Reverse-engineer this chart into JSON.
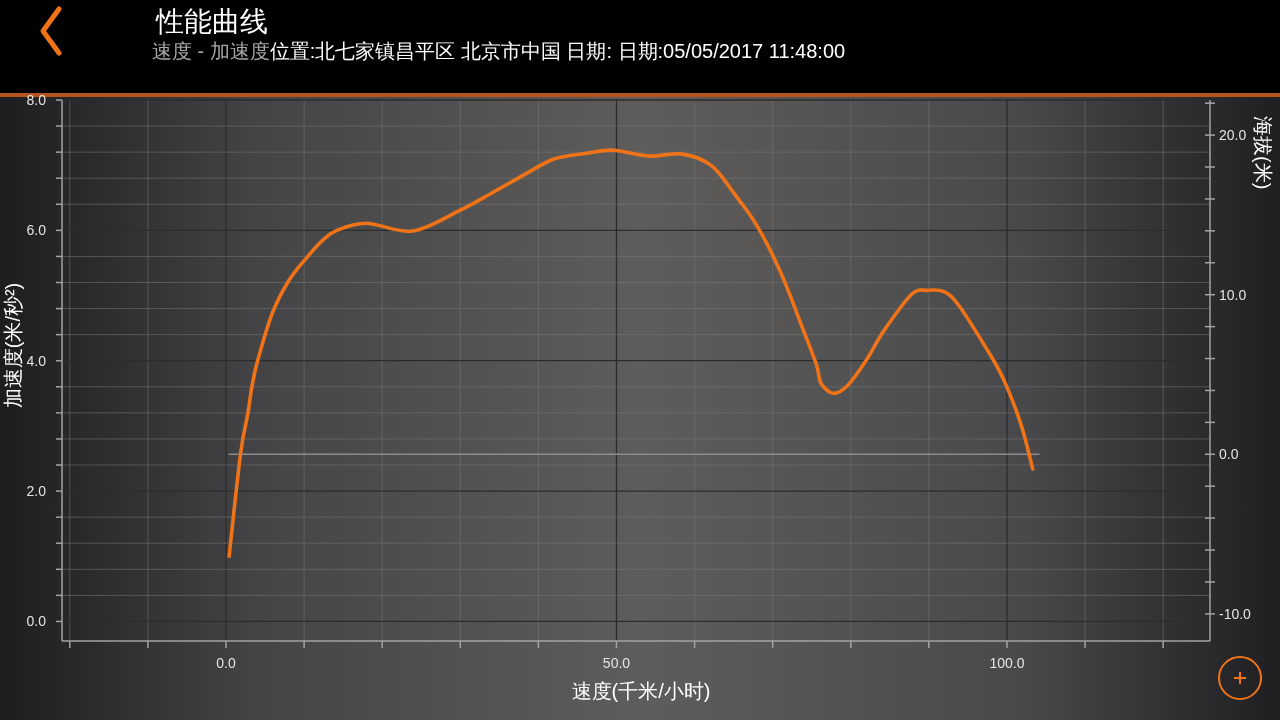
{
  "chart_data": {
    "type": "line",
    "title": "性能曲线",
    "subtitle": "速度 - 加速度",
    "annotations": [
      "位置:北七家镇昌平区 北京市中国 日期: 日期:05/05/2017 11:48:00"
    ],
    "xlabel": "速度(千米/小时)",
    "ylabel": "加速度(米/秒²)",
    "y2label": "海拔(米)",
    "series": [
      {
        "color": "#f07318",
        "x": [
          0.4,
          1.86,
          2.8,
          3.3,
          4.05,
          5.9,
          8.05,
          10.4,
          12.4,
          14.2,
          18.0,
          23.9,
          30.0,
          34.0,
          37.7,
          41.9,
          46.0,
          49.6,
          54.1,
          58.5,
          62.2,
          65.1,
          68.0,
          71.0,
          73.8,
          75.6,
          76.2,
          77.8,
          79.6,
          82.0,
          84.3,
          87.8,
          89.9,
          91.9,
          93.7,
          97.2,
          99.5,
          101.8,
          103.3
        ],
        "values": [
          1.0,
          2.57,
          3.19,
          3.59,
          4.0,
          4.72,
          5.23,
          5.59,
          5.85,
          6.0,
          6.11,
          5.99,
          6.31,
          6.57,
          6.82,
          7.09,
          7.18,
          7.23,
          7.14,
          7.17,
          6.99,
          6.56,
          6.07,
          5.36,
          4.51,
          3.94,
          3.65,
          3.5,
          3.62,
          4.01,
          4.47,
          5.02,
          5.08,
          5.06,
          4.87,
          4.22,
          3.73,
          3.02,
          2.34
        ]
      },
      {
        "color": "#8c8c8c",
        "axis": "y2",
        "x": [
          0.4,
          104.1
        ],
        "values": [
          0,
          0
        ]
      }
    ],
    "xlim": [
      -21,
      126
    ],
    "xticks": [
      {
        "value": -20,
        "label": null
      },
      {
        "value": -10,
        "label": null
      },
      {
        "value": 0,
        "label": "0.0"
      },
      {
        "value": 10,
        "label": null
      },
      {
        "value": 20,
        "label": null
      },
      {
        "value": 30,
        "label": null
      },
      {
        "value": 40,
        "label": null
      },
      {
        "value": 50,
        "label": "50.0"
      },
      {
        "value": 60,
        "label": null
      },
      {
        "value": 70,
        "label": null
      },
      {
        "value": 80,
        "label": null
      },
      {
        "value": 90,
        "label": null
      },
      {
        "value": 100,
        "label": "100.0"
      },
      {
        "value": 110,
        "label": null
      },
      {
        "value": 120,
        "label": null
      }
    ],
    "ylim": [
      -0.3,
      8
    ],
    "yticks": [
      {
        "value": 0,
        "label": "0.0"
      },
      {
        "value": 0.4,
        "label": null
      },
      {
        "value": 0.8,
        "label": null
      },
      {
        "value": 1.2,
        "label": null
      },
      {
        "value": 1.6,
        "label": null
      },
      {
        "value": 2,
        "label": "2.0"
      },
      {
        "value": 2.4,
        "label": null
      },
      {
        "value": 2.8,
        "label": null
      },
      {
        "value": 3.2,
        "label": null
      },
      {
        "value": 3.6,
        "label": null
      },
      {
        "value": 4,
        "label": "4.0"
      },
      {
        "value": 4.4,
        "label": null
      },
      {
        "value": 4.8,
        "label": null
      },
      {
        "value": 5.2,
        "label": null
      },
      {
        "value": 5.6,
        "label": null
      },
      {
        "value": 6,
        "label": "6.0"
      },
      {
        "value": 6.4,
        "label": null
      },
      {
        "value": 6.8,
        "label": null
      },
      {
        "value": 7.2,
        "label": null
      },
      {
        "value": 7.6,
        "label": null
      },
      {
        "value": 8,
        "label": "8.0"
      }
    ],
    "y2lim": [
      -11.7,
      22.2
    ],
    "y2ticks": [
      {
        "value": -10,
        "label": "-10.0"
      },
      {
        "value": -8,
        "label": null
      },
      {
        "value": -6,
        "label": null
      },
      {
        "value": -4,
        "label": null
      },
      {
        "value": -2,
        "label": null
      },
      {
        "value": 0,
        "label": "0.0"
      },
      {
        "value": 2,
        "label": null
      },
      {
        "value": 4,
        "label": null
      },
      {
        "value": 6,
        "label": null
      },
      {
        "value": 8,
        "label": null
      },
      {
        "value": 10,
        "label": "10.0"
      },
      {
        "value": 12,
        "label": null
      },
      {
        "value": 14,
        "label": null
      },
      {
        "value": 16,
        "label": null
      },
      {
        "value": 18,
        "label": null
      },
      {
        "value": 20,
        "label": "20.0"
      },
      {
        "value": 22,
        "label": null
      }
    ],
    "grid": true
  }
}
